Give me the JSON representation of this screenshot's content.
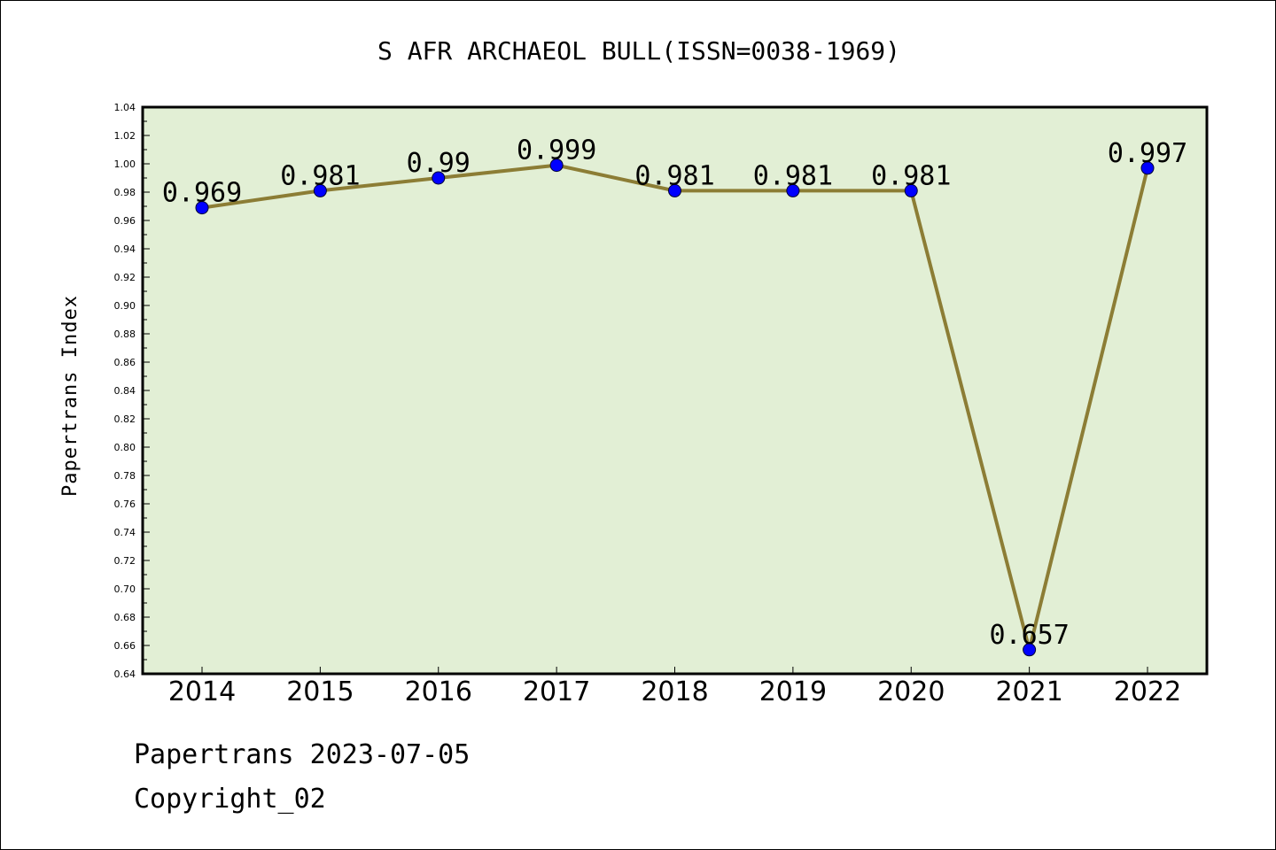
{
  "footer": {
    "line1": "Papertrans 2023-07-05",
    "line2": "Copyright_02"
  },
  "colors": {
    "plot_background": "#e2efd5",
    "line": "#8c7d35",
    "marker": "#0000ff",
    "frame": "#000000"
  },
  "chart_data": {
    "type": "line",
    "title": "S AFR ARCHAEOL BULL(ISSN=0038-1969)",
    "xlabel": "",
    "ylabel": "Papertrans Index",
    "categories": [
      "2014",
      "2015",
      "2016",
      "2017",
      "2018",
      "2019",
      "2020",
      "2021",
      "2022"
    ],
    "series": [
      {
        "values": [
          0.969,
          0.981,
          0.99,
          0.999,
          0.981,
          0.981,
          0.981,
          0.657,
          0.997
        ],
        "labels": [
          "0.969",
          "0.981",
          "0.99",
          "0.999",
          "0.981",
          "0.981",
          "0.981",
          "0.657",
          "0.997"
        ]
      }
    ],
    "ylim": [
      0.64,
      1.04
    ],
    "yticks": [
      "0.64",
      "0.66",
      "0.68",
      "0.70",
      "0.72",
      "0.74",
      "0.76",
      "0.78",
      "0.80",
      "0.82",
      "0.84",
      "0.86",
      "0.88",
      "0.90",
      "0.92",
      "0.94",
      "0.96",
      "0.98",
      "1.00",
      "1.02",
      "1.04"
    ],
    "grid": false,
    "legend": "none"
  }
}
